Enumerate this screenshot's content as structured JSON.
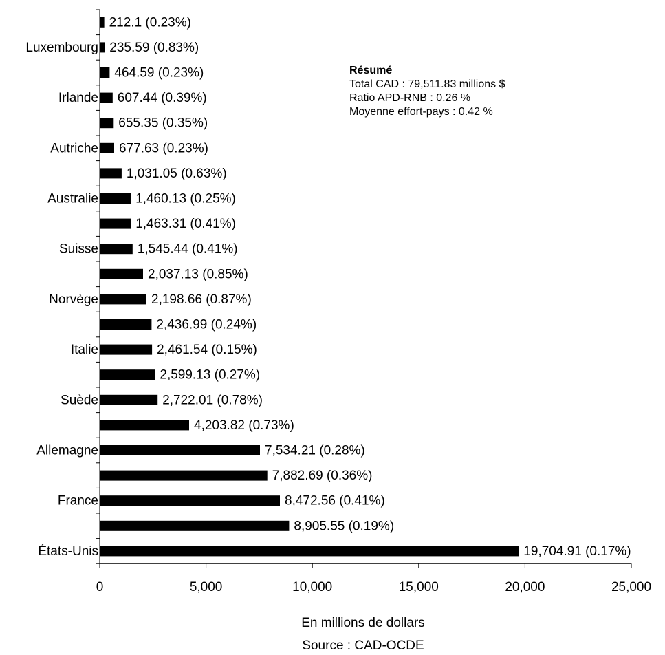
{
  "chart_data": {
    "type": "bar",
    "orientation": "horizontal",
    "categories": [
      "",
      "Luxembourg",
      "",
      "Irlande",
      "",
      "Autriche",
      "",
      "Australie",
      "",
      "Suisse",
      "",
      "Norvège",
      "",
      "Italie",
      "",
      "Suède",
      "",
      "Allemagne",
      "",
      "France",
      "",
      "États-Unis"
    ],
    "values": [
      212.1,
      235.59,
      464.59,
      607.44,
      655.35,
      677.63,
      1031.05,
      1460.13,
      1463.31,
      1545.44,
      2037.13,
      2198.66,
      2436.99,
      2461.54,
      2599.13,
      2722.01,
      4203.82,
      7534.21,
      7882.69,
      8472.56,
      8905.55,
      19704.91
    ],
    "value_labels": [
      "212.1",
      "235.59",
      "464.59",
      "607.44",
      "655.35",
      "677.63",
      "1,031.05",
      "1,460.13",
      "1,463.31",
      "1,545.44",
      "2,037.13",
      "2,198.66",
      "2,436.99",
      "2,461.54",
      "2,599.13",
      "2,722.01",
      "4,203.82",
      "7,534.21",
      "7,882.69",
      "8,472.56",
      "8,905.55",
      "19,704.91"
    ],
    "ratios": [
      "0.23%",
      "0.83%",
      "0.23%",
      "0.39%",
      "0.35%",
      "0.23%",
      "0.63%",
      "0.25%",
      "0.41%",
      "0.41%",
      "0.85%",
      "0.87%",
      "0.24%",
      "0.15%",
      "0.27%",
      "0.78%",
      "0.73%",
      "0.28%",
      "0.36%",
      "0.41%",
      "0.19%",
      "0.17%"
    ],
    "xlim": [
      0,
      25000
    ],
    "xticks": [
      0,
      5000,
      10000,
      15000,
      20000,
      25000
    ],
    "xtick_labels": [
      "0",
      "5,000",
      "10,000",
      "15,000",
      "20,000",
      "25,000"
    ],
    "xlabel": "En millions de dollars",
    "source": "Source : CAD-OCDE",
    "bar_color": "#000000",
    "grid": false,
    "legend": "none"
  },
  "summary": {
    "title": "Résumé",
    "line1": "Total CAD : 79,511.83 millions $",
    "line2": "Ratio APD-RNB : 0.26 %",
    "line3": "Moyenne effort-pays : 0.42 %"
  }
}
